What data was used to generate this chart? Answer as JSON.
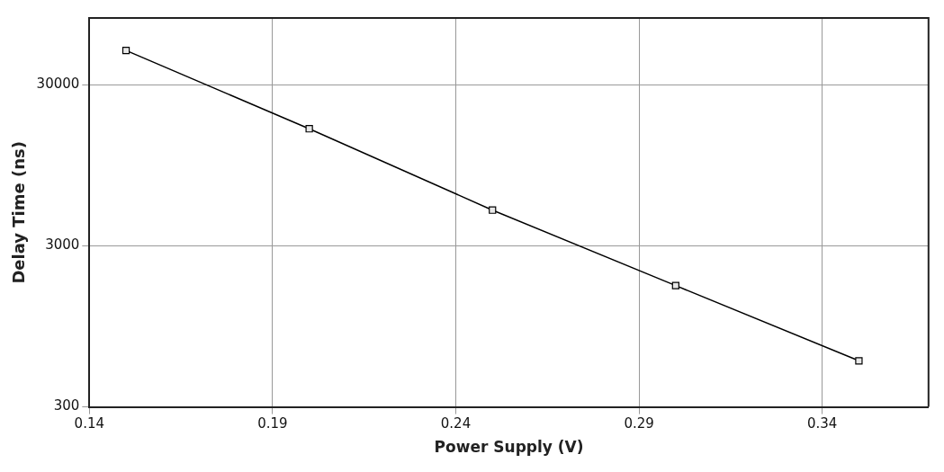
{
  "chart_data": {
    "type": "line",
    "xlabel": "Power Supply (V)",
    "ylabel": "Delay Time (ns)",
    "x": [
      0.15,
      0.2,
      0.25,
      0.3,
      0.35
    ],
    "series": [
      {
        "color": "#000000",
        "values": [
          49000,
          16000,
          5000,
          1700,
          580
        ]
      }
    ],
    "xlim": [
      0.14,
      0.369
    ],
    "xticks": [
      0.14,
      0.19,
      0.24,
      0.29,
      0.34
    ],
    "ylim": [
      300,
      78000
    ],
    "yticks": [
      300,
      3000,
      30000
    ],
    "log": "y",
    "grid": true,
    "legend": false,
    "marker": "square",
    "line_style": "solid"
  }
}
